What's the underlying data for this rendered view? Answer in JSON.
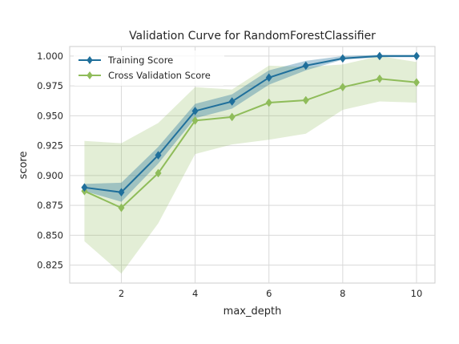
{
  "chart_data": {
    "type": "line",
    "title": "Validation Curve for RandomForestClassifier",
    "xlabel": "max_depth",
    "ylabel": "score",
    "xlim": [
      0.6,
      10.5
    ],
    "ylim": [
      0.81,
      1.008
    ],
    "xticks": [
      2,
      4,
      6,
      8,
      10
    ],
    "yticks": [
      0.825,
      0.85,
      0.875,
      0.9,
      0.925,
      0.95,
      0.975,
      1.0
    ],
    "ytick_labels": [
      "0.825",
      "0.850",
      "0.875",
      "0.900",
      "0.925",
      "0.950",
      "0.975",
      "1.000"
    ],
    "grid": true,
    "legend_position": "top-left",
    "x": [
      1,
      2,
      3,
      4,
      5,
      6,
      7,
      8,
      9,
      10
    ],
    "series": [
      {
        "name": "Training Score",
        "color": "#1f6f9b",
        "marker": "diamond",
        "values": [
          0.89,
          0.886,
          0.917,
          0.954,
          0.962,
          0.982,
          0.992,
          0.998,
          1.0,
          1.0
        ],
        "band_lower": [
          0.887,
          0.878,
          0.91,
          0.948,
          0.956,
          0.976,
          0.988,
          0.997,
          0.999,
          0.999
        ],
        "band_upper": [
          0.893,
          0.894,
          0.924,
          0.96,
          0.968,
          0.988,
          0.996,
          1.0,
          1.001,
          1.001
        ]
      },
      {
        "name": "Cross Validation Score",
        "color": "#8fbc5a",
        "marker": "diamond",
        "values": [
          0.887,
          0.873,
          0.902,
          0.946,
          0.949,
          0.961,
          0.963,
          0.974,
          0.981,
          0.978
        ],
        "band_lower": [
          0.845,
          0.818,
          0.86,
          0.918,
          0.926,
          0.93,
          0.935,
          0.955,
          0.962,
          0.961
        ],
        "band_upper": [
          0.929,
          0.927,
          0.944,
          0.974,
          0.972,
          0.992,
          0.991,
          0.993,
          1.0,
          0.995
        ]
      }
    ]
  }
}
